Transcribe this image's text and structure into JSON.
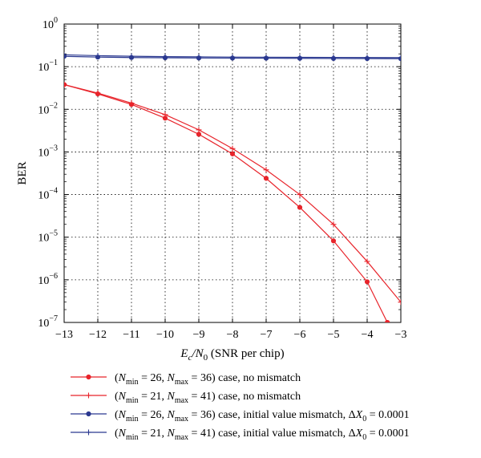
{
  "chart_data": {
    "type": "line",
    "xlabel": "E_c/N_0 (SNR per chip)",
    "ylabel": "BER",
    "xlim": [
      -13,
      -3
    ],
    "ylim_log10": [
      -7,
      0
    ],
    "y_scale": "log",
    "grid": true,
    "legend_position": "bottom",
    "x_ticks": [
      "−13",
      "−12",
      "−11",
      "−10",
      "−9",
      "−8",
      "−7",
      "−6",
      "−5",
      "−4",
      "−3"
    ],
    "y_ticks": [
      {
        "exp": 0,
        "label": "10",
        "sup": "0"
      },
      {
        "exp": -1,
        "label": "10",
        "sup": "−1"
      },
      {
        "exp": -2,
        "label": "10",
        "sup": "−2"
      },
      {
        "exp": -3,
        "label": "10",
        "sup": "−3"
      },
      {
        "exp": -4,
        "label": "10",
        "sup": "−4"
      },
      {
        "exp": -5,
        "label": "10",
        "sup": "−5"
      },
      {
        "exp": -6,
        "label": "10",
        "sup": "−6"
      },
      {
        "exp": -7,
        "label": "10",
        "sup": "−7"
      }
    ],
    "series": [
      {
        "name": "(N_min = 26, N_max = 36) case, no mismatch",
        "color": "#e8242b",
        "marker": "dot",
        "x": [
          -13,
          -12,
          -11,
          -10,
          -9,
          -8,
          -7,
          -6,
          -5,
          -4,
          -3.4
        ],
        "y": [
          0.038,
          0.023,
          0.013,
          0.0062,
          0.0026,
          0.0009,
          0.00024,
          5e-05,
          8.2e-06,
          9e-07,
          1e-07
        ]
      },
      {
        "name": "(N_min = 21, N_max = 41) case, no mismatch",
        "color": "#e8242b",
        "marker": "plus",
        "x": [
          -13,
          -12,
          -11,
          -10,
          -9,
          -8,
          -7,
          -6,
          -5,
          -4,
          -3
        ],
        "y": [
          0.038,
          0.024,
          0.014,
          0.0075,
          0.0033,
          0.0012,
          0.00038,
          0.0001,
          2e-05,
          2.7e-06,
          3e-07
        ]
      },
      {
        "name": "(N_min = 26, N_max = 36) case, initial value mismatch, ΔX_0 = 0.0001",
        "color": "#2b3990",
        "marker": "dot",
        "x": [
          -13,
          -12,
          -11,
          -10,
          -9,
          -8,
          -7,
          -6,
          -5,
          -4,
          -3
        ],
        "y": [
          0.175,
          0.168,
          0.164,
          0.162,
          0.16,
          0.159,
          0.158,
          0.157,
          0.156,
          0.155,
          0.154
        ]
      },
      {
        "name": "(N_min = 21, N_max = 41) case, initial value mismatch, ΔX_0 = 0.0001",
        "color": "#2b3990",
        "marker": "plus",
        "x": [
          -13,
          -12,
          -11,
          -10,
          -9,
          -8,
          -7,
          -6,
          -5,
          -4,
          -3
        ],
        "y": [
          0.19,
          0.181,
          0.176,
          0.172,
          0.17,
          0.168,
          0.167,
          0.166,
          0.165,
          0.164,
          0.163
        ]
      }
    ]
  },
  "legend": [
    {
      "text": "(N",
      "sub1": "min",
      "mid1": " = 26, N",
      "sub2": "max",
      "tail": " = 36) case, no mismatch"
    },
    {
      "text": "(N",
      "sub1": "min",
      "mid1": " = 21, N",
      "sub2": "max",
      "tail": " = 41) case, no mismatch"
    },
    {
      "text": "(N",
      "sub1": "min",
      "mid1": " = 26, N",
      "sub2": "max",
      "tail": " = 36) case, initial value mismatch, ΔX",
      "sub3": "0",
      "tail2": " = 0.0001"
    },
    {
      "text": "(N",
      "sub1": "min",
      "mid1": " = 21, N",
      "sub2": "max",
      "tail": " = 41) case, initial value mismatch, ΔX",
      "sub3": "0",
      "tail2": " = 0.0001"
    }
  ],
  "xlabel_parts": {
    "e": "E",
    "c": "c",
    "slash": "/N",
    "zero": "0",
    "rest": " (SNR per chip)"
  }
}
